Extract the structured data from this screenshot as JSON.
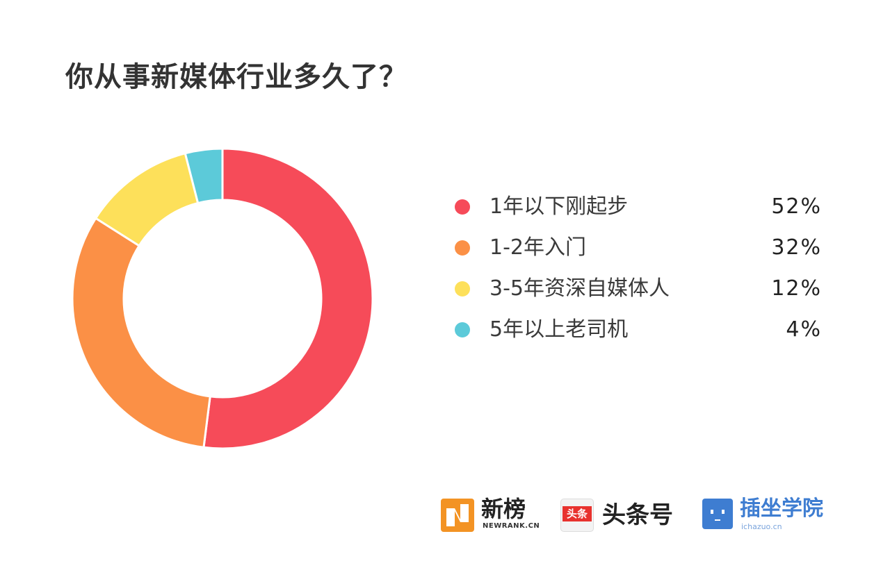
{
  "title": "你从事新媒体行业多久了？",
  "chart_data": {
    "type": "pie",
    "variant": "donut",
    "categories": [
      "1年以下刚起步",
      "1-2年入门",
      "3-5年资深自媒体人",
      "5年以上老司机"
    ],
    "values": [
      52,
      32,
      12,
      4
    ],
    "value_labels": [
      "52%",
      "32%",
      "12%",
      "4%"
    ],
    "colors": [
      "#f64b59",
      "#fb9046",
      "#fde05a",
      "#5ccad9"
    ],
    "legend_position": "right"
  },
  "footer": {
    "newrank": {
      "name": "新榜",
      "domain": "NEWRANK.CN"
    },
    "toutiao": {
      "badge": "头条",
      "name": "头条号"
    },
    "chazuo": {
      "name": "插坐学院",
      "domain": "ichazuo.cn"
    }
  }
}
